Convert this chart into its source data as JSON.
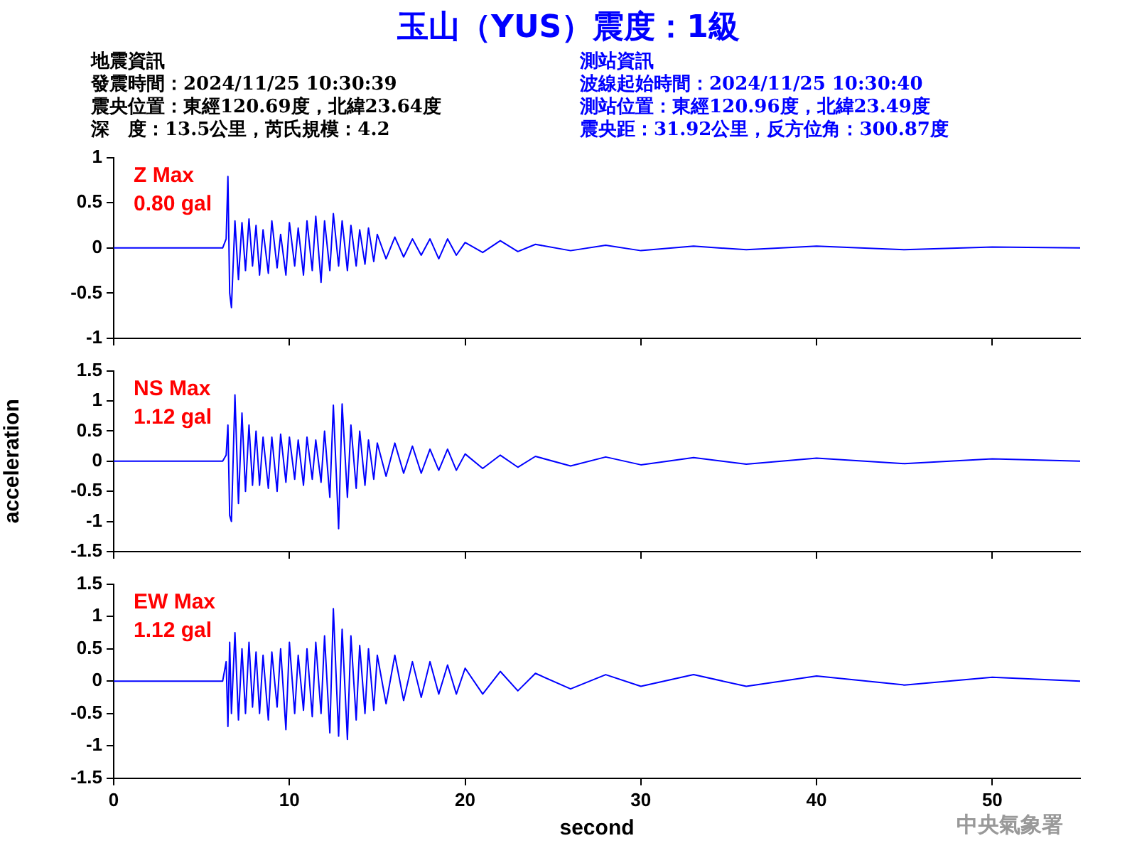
{
  "chart_data": [
    {
      "type": "line",
      "title": "玉山（YUS）震度：1級",
      "x": [
        0,
        3,
        6.2,
        6.4,
        6.5,
        6.6,
        6.7,
        6.9,
        7.1,
        7.3,
        7.5,
        7.7,
        7.9,
        8.1,
        8.3,
        8.5,
        8.8,
        9.0,
        9.3,
        9.5,
        9.8,
        10.0,
        10.3,
        10.5,
        10.8,
        11.0,
        11.3,
        11.5,
        11.8,
        12.0,
        12.3,
        12.5,
        12.8,
        13.0,
        13.3,
        13.5,
        13.8,
        14.0,
        14.3,
        14.5,
        14.8,
        15.0,
        15.5,
        16,
        16.5,
        17,
        17.5,
        18,
        18.5,
        19,
        19.5,
        20,
        21,
        22,
        23,
        24,
        26,
        28,
        30,
        33,
        36,
        40,
        45,
        50,
        55
      ],
      "series": [
        {
          "color": "#0000ff",
          "values": [
            0,
            0,
            0,
            0.1,
            0.79,
            -0.5,
            -0.66,
            0.3,
            -0.35,
            0.28,
            -0.25,
            0.32,
            -0.2,
            0.25,
            -0.3,
            0.2,
            -0.28,
            0.3,
            -0.22,
            0.15,
            -0.3,
            0.28,
            -0.2,
            0.22,
            -0.3,
            0.3,
            -0.25,
            0.35,
            -0.38,
            0.3,
            -0.25,
            0.38,
            -0.2,
            0.3,
            -0.25,
            0.25,
            -0.2,
            0.2,
            -0.18,
            0.22,
            -0.15,
            0.15,
            -0.12,
            0.12,
            -0.1,
            0.1,
            -0.08,
            0.1,
            -0.12,
            0.1,
            -0.08,
            0.06,
            -0.05,
            0.08,
            -0.04,
            0.04,
            -0.03,
            0.03,
            -0.03,
            0.02,
            -0.02,
            0.02,
            -0.02,
            0.01,
            0
          ]
        }
      ],
      "xlim": [
        0,
        55
      ],
      "xticks": [
        0,
        10,
        20,
        30,
        40,
        50
      ],
      "ylim": [
        -1,
        1
      ],
      "yticks": [
        -1,
        -0.5,
        0,
        0.5,
        1
      ],
      "tick_labels": "y",
      "grid": false,
      "legend": false,
      "annotations": [
        "地震資訊",
        "發震時間：2024/11/25 10:30:39",
        "震央位置：東經120.69度，北緯23.64度",
        "深　度：13.5公里，芮氏規模：4.2",
        "測站資訊",
        "波線起始時間：2024/11/25 10:30:40",
        "測站位置：東經120.96度，北緯23.49度",
        "震央距：31.92公里，反方位角：300.87度",
        "Z Max",
        "0.80 gal"
      ]
    },
    {
      "type": "line",
      "ylabel": "acceleration",
      "x": [
        0,
        3,
        6.2,
        6.4,
        6.5,
        6.6,
        6.7,
        6.9,
        7.1,
        7.3,
        7.5,
        7.7,
        7.9,
        8.1,
        8.3,
        8.5,
        8.8,
        9.0,
        9.3,
        9.5,
        9.8,
        10.0,
        10.3,
        10.5,
        10.8,
        11.0,
        11.3,
        11.5,
        11.8,
        12.0,
        12.3,
        12.5,
        12.8,
        13.0,
        13.3,
        13.5,
        13.8,
        14.0,
        14.3,
        14.5,
        14.8,
        15.0,
        15.5,
        16,
        16.5,
        17,
        17.5,
        18,
        18.5,
        19,
        19.5,
        20,
        21,
        22,
        23,
        24,
        26,
        28,
        30,
        33,
        36,
        40,
        45,
        50,
        55
      ],
      "series": [
        {
          "color": "#0000ff",
          "values": [
            0,
            0,
            0,
            0.1,
            0.6,
            -0.9,
            -1.0,
            1.1,
            -0.7,
            0.8,
            -0.5,
            0.6,
            -0.4,
            0.5,
            -0.4,
            0.4,
            -0.45,
            0.4,
            -0.5,
            0.45,
            -0.35,
            0.4,
            -0.3,
            0.35,
            -0.4,
            0.4,
            -0.3,
            0.35,
            -0.35,
            0.5,
            -0.6,
            0.93,
            -1.12,
            0.95,
            -0.6,
            0.6,
            -0.45,
            0.5,
            -0.4,
            0.35,
            -0.3,
            0.3,
            -0.25,
            0.3,
            -0.2,
            0.25,
            -0.2,
            0.2,
            -0.15,
            0.2,
            -0.15,
            0.12,
            -0.12,
            0.1,
            -0.1,
            0.08,
            -0.08,
            0.07,
            -0.06,
            0.06,
            -0.05,
            0.05,
            -0.04,
            0.04,
            0
          ]
        }
      ],
      "xlim": [
        0,
        55
      ],
      "xticks": [
        0,
        10,
        20,
        30,
        40,
        50
      ],
      "ylim": [
        -1.5,
        1.5
      ],
      "yticks": [
        -1.5,
        -1,
        -0.5,
        0,
        0.5,
        1,
        1.5
      ],
      "tick_labels": "y",
      "grid": false,
      "legend": false,
      "annotations": [
        "NS Max",
        "1.12 gal"
      ]
    },
    {
      "type": "line",
      "xlabel": "second",
      "x": [
        0,
        3,
        6.2,
        6.4,
        6.5,
        6.6,
        6.7,
        6.9,
        7.1,
        7.3,
        7.5,
        7.7,
        7.9,
        8.1,
        8.3,
        8.5,
        8.8,
        9.0,
        9.3,
        9.5,
        9.8,
        10.0,
        10.3,
        10.5,
        10.8,
        11.0,
        11.3,
        11.5,
        11.8,
        12.0,
        12.3,
        12.5,
        12.8,
        13.0,
        13.3,
        13.5,
        13.8,
        14.0,
        14.3,
        14.5,
        14.8,
        15.0,
        15.5,
        16,
        16.5,
        17,
        17.5,
        18,
        18.5,
        19,
        19.5,
        20,
        21,
        22,
        23,
        24,
        26,
        28,
        30,
        33,
        36,
        40,
        45,
        50,
        55
      ],
      "series": [
        {
          "color": "#0000ff",
          "values": [
            0,
            0,
            0,
            0.3,
            -0.7,
            0.6,
            -0.5,
            0.75,
            -0.6,
            0.5,
            -0.5,
            0.6,
            -0.4,
            0.45,
            -0.5,
            0.4,
            -0.6,
            0.45,
            -0.4,
            0.5,
            -0.75,
            0.6,
            -0.5,
            0.4,
            -0.45,
            0.5,
            -0.55,
            0.6,
            -0.5,
            0.7,
            -0.8,
            1.12,
            -0.85,
            0.8,
            -0.9,
            0.7,
            -0.6,
            0.55,
            -0.5,
            0.5,
            -0.45,
            0.4,
            -0.35,
            0.4,
            -0.3,
            0.3,
            -0.25,
            0.3,
            -0.2,
            0.25,
            -0.2,
            0.2,
            -0.2,
            0.15,
            -0.15,
            0.12,
            -0.12,
            0.1,
            -0.08,
            0.1,
            -0.08,
            0.08,
            -0.06,
            0.06,
            0
          ]
        }
      ],
      "xlim": [
        0,
        55
      ],
      "xticks": [
        0,
        10,
        20,
        30,
        40,
        50
      ],
      "ylim": [
        -1.5,
        1.5
      ],
      "yticks": [
        -1.5,
        -1,
        -0.5,
        0,
        0.5,
        1,
        1.5
      ],
      "grid": false,
      "legend": false,
      "annotations": [
        "EW Max",
        "1.12 gal",
        "中央氣象署"
      ]
    }
  ]
}
